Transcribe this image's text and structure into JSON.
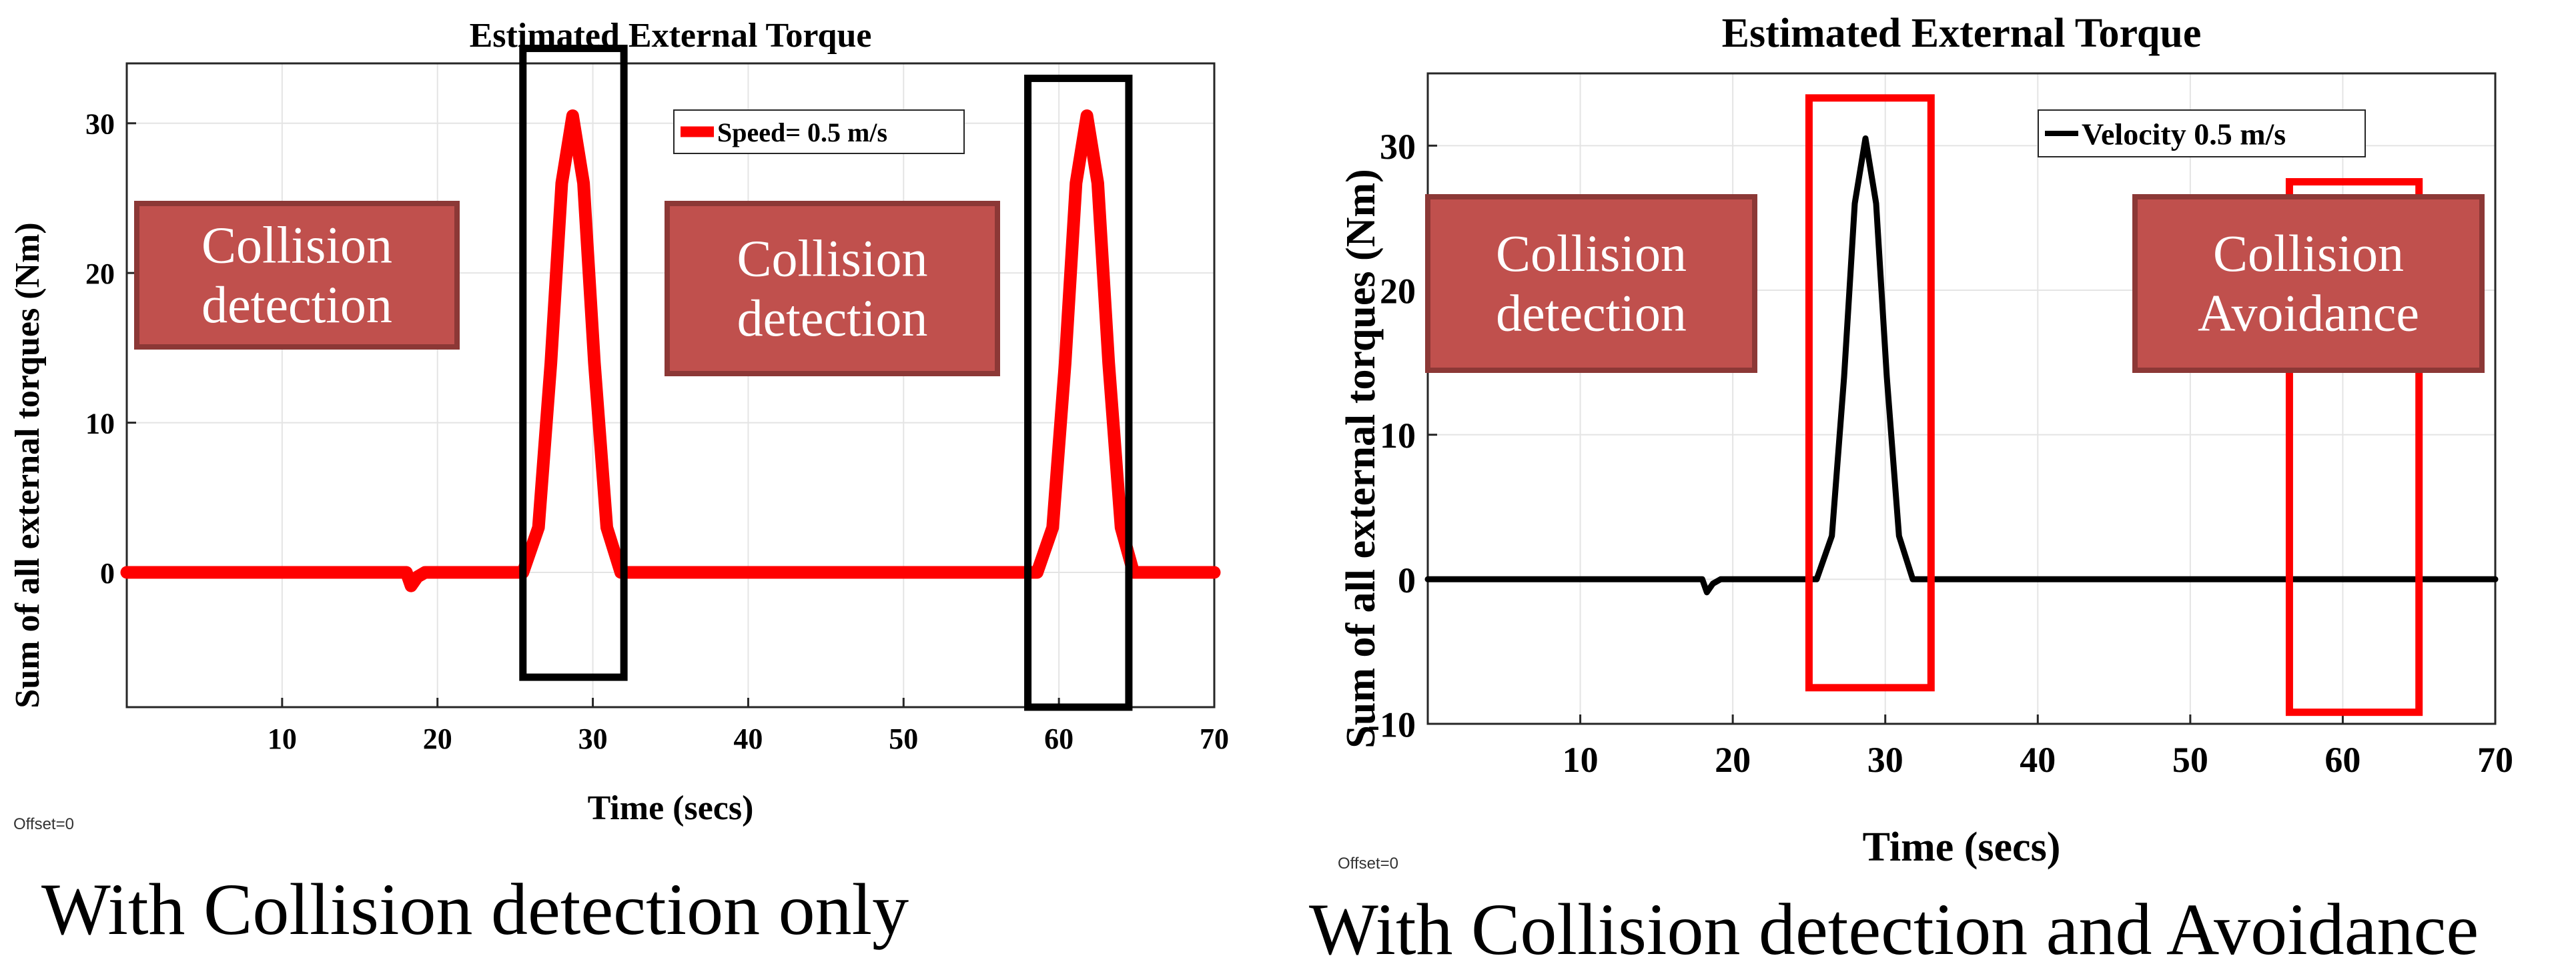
{
  "chart_data": [
    {
      "type": "line",
      "title": "Estimated External Torque",
      "xlabel": "Time (secs)",
      "ylabel": "Sum of all external torques (Nm)",
      "xlim": [
        0,
        70
      ],
      "ylim": [
        -9,
        34
      ],
      "xticks": [
        10,
        20,
        30,
        40,
        50,
        60,
        70
      ],
      "yticks": [
        0,
        10,
        20,
        30
      ],
      "grid": true,
      "legend_position": "top-right",
      "series": [
        {
          "name": "Speed= 0.5 m/s",
          "color": "#ff0000",
          "points": [
            [
              0,
              0
            ],
            [
              18,
              0
            ],
            [
              18.3,
              -0.9
            ],
            [
              18.7,
              -0.3
            ],
            [
              19.2,
              0
            ],
            [
              25.5,
              0
            ],
            [
              26.5,
              3
            ],
            [
              27.3,
              14
            ],
            [
              28,
              26
            ],
            [
              28.7,
              30.5
            ],
            [
              29.4,
              26
            ],
            [
              30.1,
              14
            ],
            [
              30.9,
              3
            ],
            [
              31.8,
              0
            ],
            [
              58.6,
              0
            ],
            [
              59.6,
              3
            ],
            [
              60.4,
              14
            ],
            [
              61.1,
              26
            ],
            [
              61.8,
              30.5
            ],
            [
              62.5,
              26
            ],
            [
              63.2,
              14
            ],
            [
              64,
              3
            ],
            [
              64.8,
              0
            ],
            [
              70,
              0
            ]
          ]
        }
      ],
      "annotations": [
        {
          "label_lines": [
            "Collision",
            "detection"
          ],
          "fill": "#c0504d"
        },
        {
          "label_lines": [
            "Collision",
            "detection"
          ],
          "fill": "#c0504d"
        }
      ],
      "highlight_boxes": [
        {
          "x_range": [
            25.5,
            32
          ],
          "y_range": [
            -7,
            35
          ],
          "color": "#000000"
        },
        {
          "x_range": [
            58,
            64.5
          ],
          "y_range": [
            -9,
            33
          ],
          "color": "#000000"
        }
      ],
      "offset_text": "Offset=0"
    },
    {
      "type": "line",
      "title": "Estimated External Torque",
      "xlabel": "Time (secs)",
      "ylabel": "Sum of all external torques (Nm)",
      "xlim": [
        0,
        70
      ],
      "ylim": [
        -10,
        35
      ],
      "xticks": [
        10,
        20,
        30,
        40,
        50,
        60,
        70
      ],
      "yticks": [
        -10,
        0,
        10,
        20,
        30
      ],
      "grid": true,
      "legend_position": "top-right",
      "series": [
        {
          "name": "Velocity 0.5 m/s",
          "color": "#000000",
          "points": [
            [
              0,
              0
            ],
            [
              18,
              0
            ],
            [
              18.3,
              -0.9
            ],
            [
              18.7,
              -0.3
            ],
            [
              19.2,
              0
            ],
            [
              25.5,
              0
            ],
            [
              26.5,
              3
            ],
            [
              27.3,
              14
            ],
            [
              28,
              26
            ],
            [
              28.7,
              30.5
            ],
            [
              29.4,
              26
            ],
            [
              30.1,
              14
            ],
            [
              30.9,
              3
            ],
            [
              31.8,
              0
            ],
            [
              70,
              0
            ]
          ]
        }
      ],
      "annotations": [
        {
          "label_lines": [
            "Collision",
            "detection"
          ],
          "fill": "#c0504d"
        },
        {
          "label_lines": [
            "Collision",
            "Avoidance"
          ],
          "fill": "#c0504d"
        }
      ],
      "highlight_boxes": [
        {
          "x_range": [
            25,
            33
          ],
          "y_range": [
            -7.5,
            33.3
          ],
          "color": "#ff0000"
        },
        {
          "x_range": [
            56.5,
            65
          ],
          "y_range": [
            -9.2,
            27.5
          ],
          "color": "#ff0000"
        }
      ],
      "offset_text": "Offset=0"
    }
  ],
  "captions": {
    "left": "With Collision detection only",
    "right": "With Collision detection and Avoidance"
  }
}
